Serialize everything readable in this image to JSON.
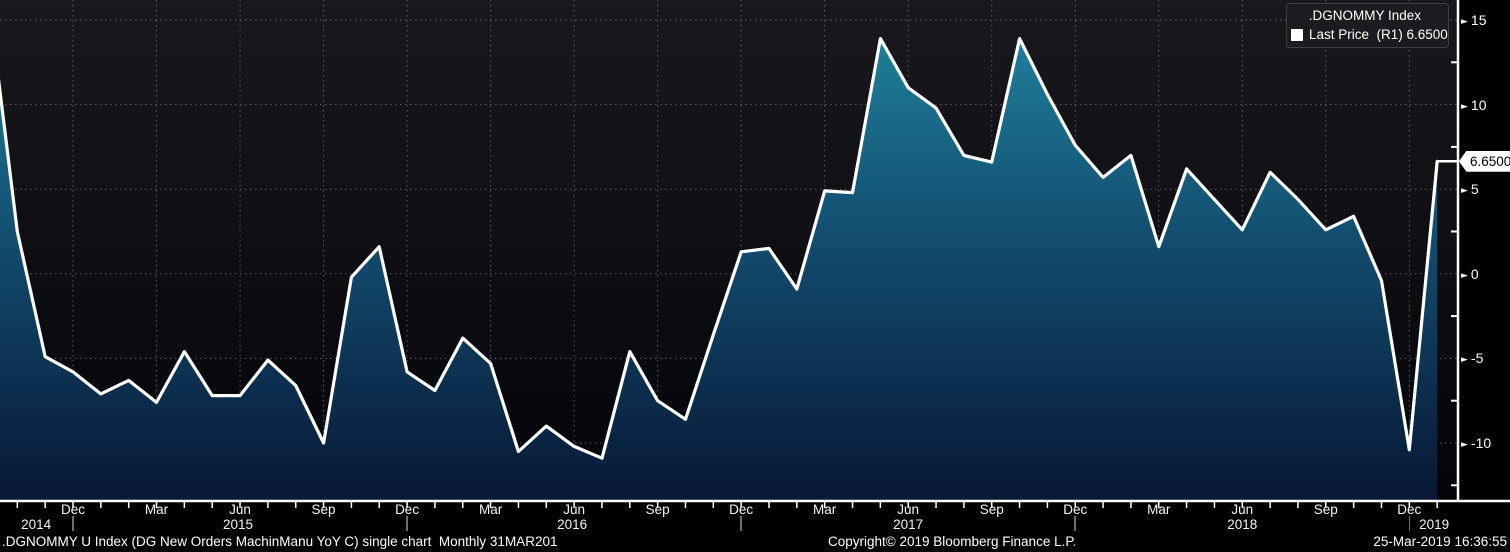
{
  "legend": {
    "line1": ".DGNOMMY Index",
    "line2": "Last Price  (R1) 6.6500",
    "swatch_color": "#ffffff"
  },
  "last_price_tag": "6.6500",
  "footer": {
    "left": ".DGNOMMY U Index (DG New Orders MachinManu YoY C) single chart  Monthly 31MAR201",
    "center": "Copyright© 2019 Bloomberg Finance L.P.",
    "right": "25-Mar-2019 16:36:55"
  },
  "icons": {
    "tick_arrow": "►",
    "legend_swatch": "■"
  },
  "chart_data": {
    "type": "area",
    "title": ".DGNOMMY Index",
    "series_name": "Last Price",
    "axis_ref": "R1",
    "last_value": 6.65,
    "months": [
      "2014-09",
      "2014-10",
      "2014-11",
      "2014-12",
      "2015-01",
      "2015-02",
      "2015-03",
      "2015-04",
      "2015-05",
      "2015-06",
      "2015-07",
      "2015-08",
      "2015-09",
      "2015-10",
      "2015-11",
      "2015-12",
      "2016-01",
      "2016-02",
      "2016-03",
      "2016-04",
      "2016-05",
      "2016-06",
      "2016-07",
      "2016-08",
      "2016-09",
      "2016-10",
      "2016-11",
      "2016-12",
      "2017-01",
      "2017-02",
      "2017-03",
      "2017-04",
      "2017-05",
      "2017-06",
      "2017-07",
      "2017-08",
      "2017-09",
      "2017-10",
      "2017-11",
      "2017-12",
      "2018-01",
      "2018-02",
      "2018-03",
      "2018-04",
      "2018-05",
      "2018-06",
      "2018-07",
      "2018-08",
      "2018-09",
      "2018-10",
      "2018-11",
      "2018-12",
      "2019-01"
    ],
    "values": [
      15.8,
      2.5,
      -4.9,
      -5.8,
      -7.1,
      -6.3,
      -7.6,
      -4.6,
      -7.2,
      -7.2,
      -5.1,
      -6.6,
      -10.0,
      -0.2,
      1.6,
      -5.8,
      -6.9,
      -3.8,
      -5.3,
      -10.5,
      -9.0,
      -10.2,
      -10.9,
      -4.6,
      -7.5,
      -8.6,
      -3.6,
      1.3,
      1.5,
      -0.9,
      4.9,
      4.8,
      13.9,
      11.0,
      9.8,
      7.0,
      6.6,
      13.9,
      10.6,
      7.6,
      5.7,
      7.0,
      1.6,
      6.2,
      4.4,
      2.6,
      6.0,
      4.4,
      2.6,
      3.4,
      -0.4,
      -10.4,
      6.65
    ],
    "yticks_major": [
      15,
      10,
      5,
      0,
      -5,
      -10
    ],
    "yticks_minor": [
      12.5,
      7.5,
      2.5,
      -2.5,
      -7.5,
      -12.5
    ],
    "ylim": [
      -13.4,
      16.2
    ],
    "grid": "dotted",
    "legend_position": "top-right",
    "month_tick_labels": {
      "03": "Mar",
      "06": "Jun",
      "09": "Sep",
      "12": "Dec"
    },
    "year_labels": [
      {
        "label": "2014",
        "anchor": "2014-11",
        "dx": -9
      },
      {
        "label": "2015",
        "anchor": "2015-06",
        "dx": -2
      },
      {
        "label": "2016",
        "anchor": "2016-06",
        "dx": -2
      },
      {
        "label": "2017",
        "anchor": "2017-06",
        "dx": 0
      },
      {
        "label": "2018",
        "anchor": "2018-06",
        "dx": 0
      },
      {
        "label": "2019",
        "anchor": "2019-01",
        "dx": -3
      }
    ],
    "colors": {
      "line": "#ffffff",
      "area_top": "#2187a2",
      "area_mid": "#124a6c",
      "area_bottom": "#081735",
      "grid": "#919196",
      "axis": "#ffffff",
      "tick_text": "#ffffff"
    }
  }
}
